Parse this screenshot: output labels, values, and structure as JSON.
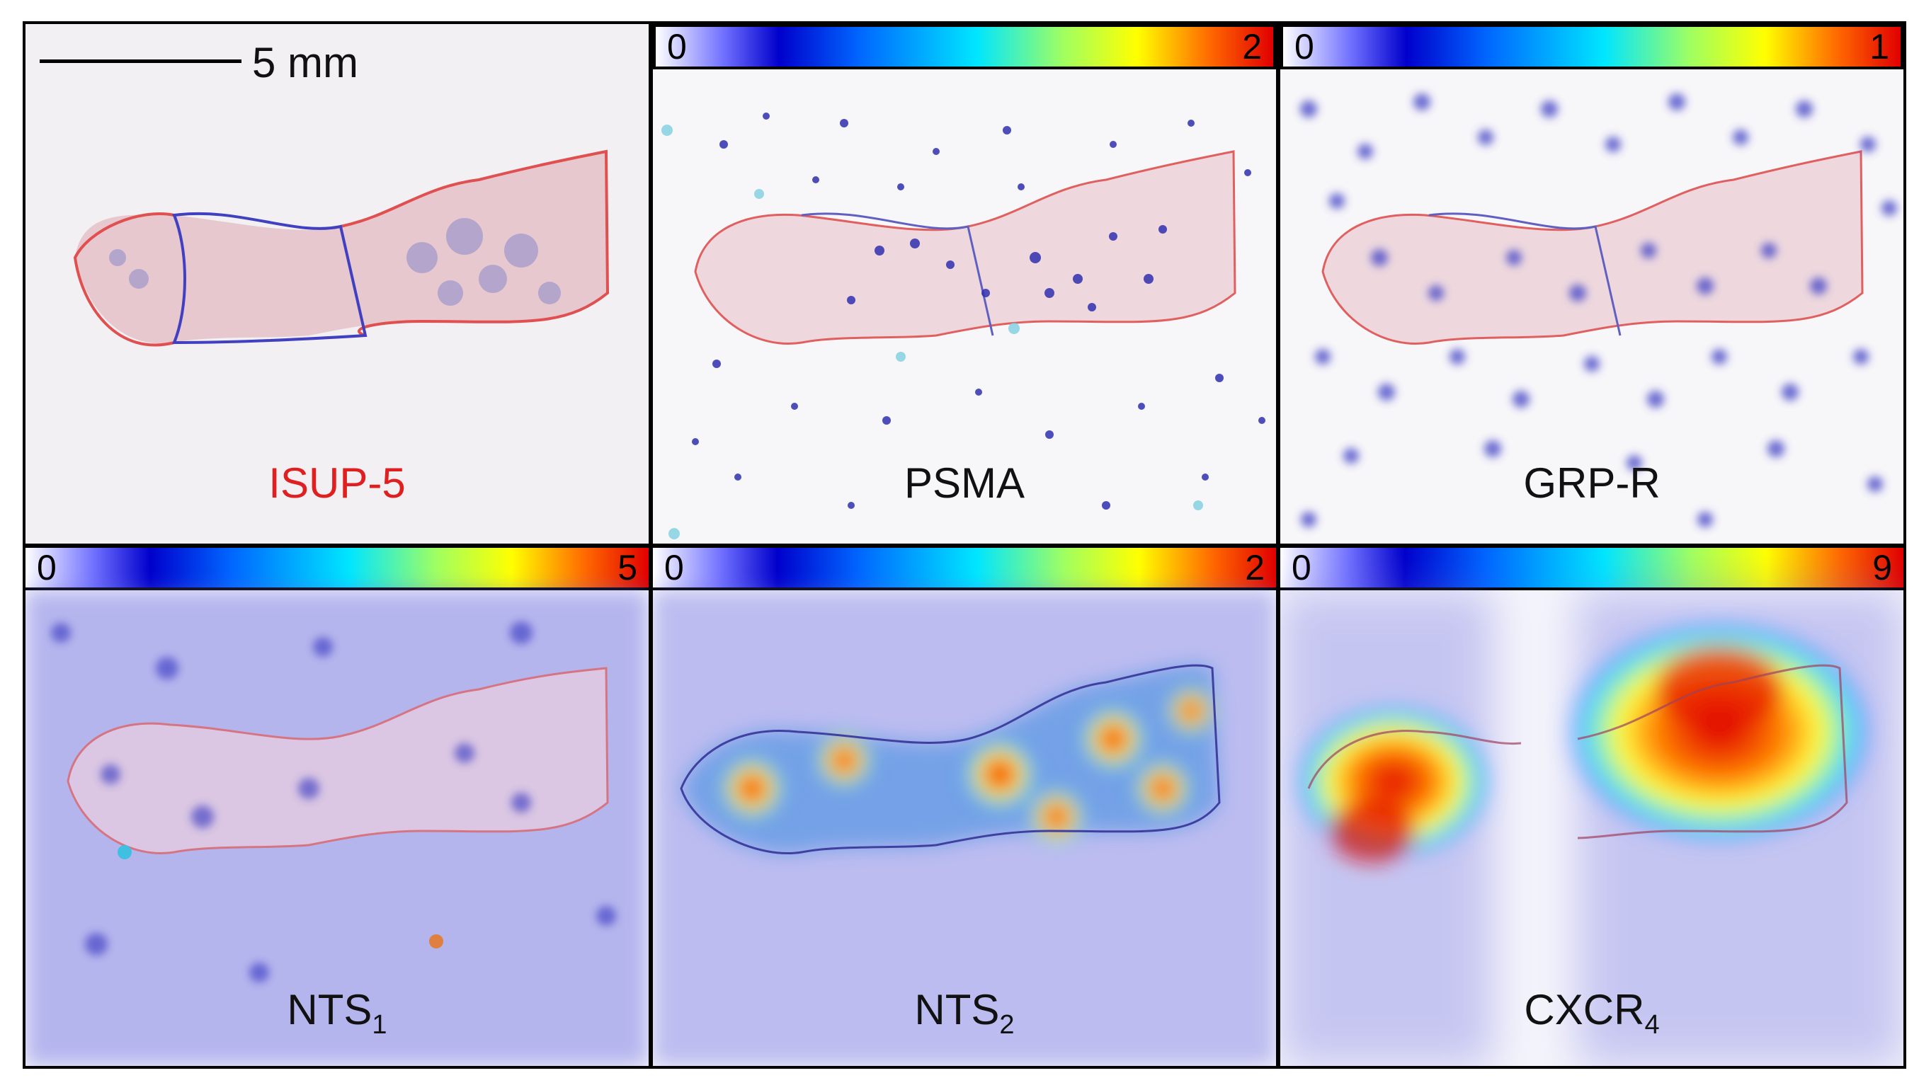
{
  "figure": {
    "scale_bar": {
      "label": "5 mm"
    },
    "panels": [
      {
        "id": "he",
        "label": "ISUP-5",
        "label_color": "#e02020",
        "colorbar": null
      },
      {
        "id": "psma",
        "label": "PSMA",
        "colorbar": {
          "min": "0",
          "max": "2"
        }
      },
      {
        "id": "grpr",
        "label": "GRP-R",
        "colorbar": {
          "min": "0",
          "max": "1"
        }
      },
      {
        "id": "nts1",
        "label_base": "NTS",
        "label_sub": "1",
        "colorbar": {
          "min": "0",
          "max": "5"
        }
      },
      {
        "id": "nts2",
        "label_base": "NTS",
        "label_sub": "2",
        "colorbar": {
          "min": "0",
          "max": "2"
        }
      },
      {
        "id": "cxcr4",
        "label_base": "CXCR",
        "label_sub": "4",
        "colorbar": {
          "min": "0",
          "max": "9"
        }
      }
    ],
    "colors": {
      "tumor_outline": "#e0504a",
      "benign_outline": "#4040c0",
      "tissue": "#e8c4cc"
    }
  }
}
